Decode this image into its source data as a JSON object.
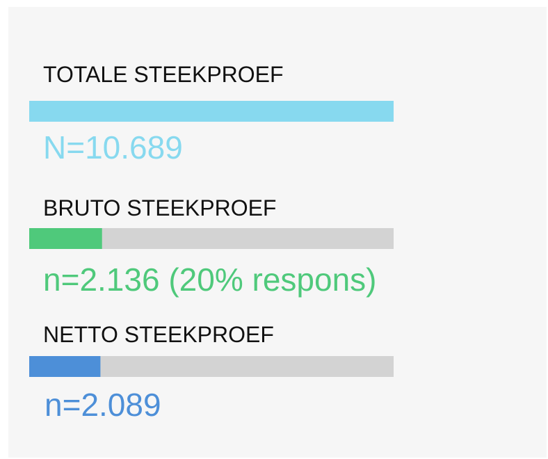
{
  "chart_data": {
    "type": "bar",
    "categories": [
      "TOTALE STEEKPROEF",
      "BRUTO STEEKPROEF",
      "NETTO STEEKPROEF"
    ],
    "series": [
      {
        "name": null,
        "colors": [
          "#87d9ef",
          "#4fc97b",
          "#4d8fd8"
        ],
        "values": [
          10689,
          2136,
          2089
        ],
        "value_labels": [
          "N=10.689",
          "n=2.136 (20% respons)",
          "n=2.089"
        ]
      }
    ],
    "xlim": [
      0,
      10689
    ]
  }
}
